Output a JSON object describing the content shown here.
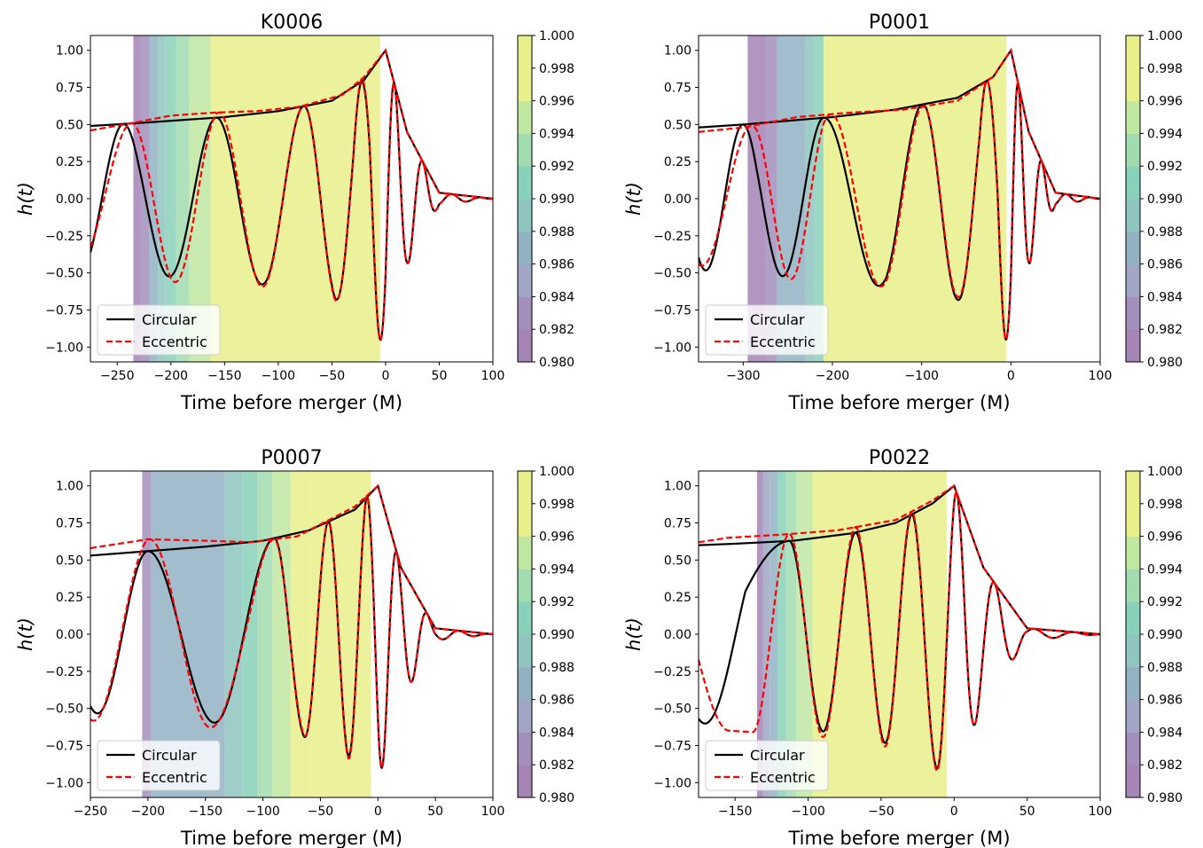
{
  "figure": {
    "xlabel_common": "Time before merger (M)",
    "ylabel_common": "h(t)"
  },
  "colors": {
    "circular": "#000000",
    "eccentric": "#ff0000",
    "colorbar_bins": [
      "#a584b6",
      "#a28fbc",
      "#a0a6c3",
      "#92b2c2",
      "#8ec6bf",
      "#88d1ba",
      "#a0dcb0",
      "#c0e8a1",
      "#e9f08a",
      "#e9f08a"
    ]
  },
  "chart_data": [
    {
      "type": "line",
      "title": "K0006",
      "xlabel": "Time before merger (M)",
      "ylabel": "h(t)",
      "xlim": [
        -275,
        100
      ],
      "ylim": [
        -1.1,
        1.1
      ],
      "xticks": [
        -250,
        -200,
        -150,
        -100,
        -50,
        0,
        50,
        100
      ],
      "yticks": [
        -1.0,
        -0.75,
        -0.5,
        -0.25,
        0.0,
        0.25,
        0.5,
        0.75,
        1.0
      ],
      "legend": {
        "placement": "lower-left",
        "entries": [
          "Circular",
          "Eccentric"
        ]
      },
      "colorbar": {
        "range": [
          0.98,
          1.0
        ],
        "ticks": [
          0.98,
          0.982,
          0.984,
          0.986,
          0.988,
          0.99,
          0.992,
          0.994,
          0.996,
          0.998,
          1.0
        ]
      },
      "shading_bands": [
        {
          "x0": -235,
          "x1": -228,
          "value": 0.9815
        },
        {
          "x0": -228,
          "x1": -220,
          "value": 0.9835
        },
        {
          "x0": -220,
          "x1": -212,
          "value": 0.9865
        },
        {
          "x0": -212,
          "x1": -205,
          "value": 0.9885
        },
        {
          "x0": -205,
          "x1": -195,
          "value": 0.991
        },
        {
          "x0": -195,
          "x1": -183,
          "value": 0.993
        },
        {
          "x0": -183,
          "x1": -163,
          "value": 0.995
        },
        {
          "x0": -163,
          "x1": -5,
          "value": 0.999
        }
      ],
      "series": [
        {
          "name": "Circular",
          "style": "solid",
          "amp": {
            "x": [
              -275,
              -230,
              -150,
              -100,
              -50,
              -20,
              0,
              20,
              50,
              100
            ],
            "y": [
              0.49,
              0.51,
              0.55,
              0.59,
              0.66,
              0.8,
              1.0,
              0.45,
              0.04,
              0.0
            ]
          },
          "phase": {
            "x": [
              -275,
              -230,
              -160,
              -110,
              -75,
              -50,
              -30,
              -15,
              0,
              10,
              25,
              40,
              60
            ],
            "y": [
              3.88,
              7.4,
              12.4,
              16.1,
              18.96,
              21.5,
              23.95,
              26.25,
              29.3,
              31.85,
              35.45,
              38.95,
              43.55
            ]
          }
        },
        {
          "name": "Eccentric",
          "style": "dashed",
          "amp": {
            "x": [
              -275,
              -236,
              -200,
              -160,
              -120,
              -80,
              -40,
              -20,
              0,
              20,
              50,
              100
            ],
            "y": [
              0.46,
              0.51,
              0.56,
              0.58,
              0.59,
              0.62,
              0.7,
              0.82,
              1.0,
              0.45,
              0.04,
              0.0
            ]
          },
          "phase": {
            "x": [
              -275,
              -236,
              -160,
              -110,
              -75,
              -50,
              -30,
              -15,
              0,
              10,
              25,
              40,
              60
            ],
            "y": [
              3.92,
              6.35,
              12.2,
              16.1,
              18.96,
              21.5,
              23.95,
              26.25,
              29.3,
              31.85,
              35.45,
              38.95,
              43.55
            ]
          }
        }
      ]
    },
    {
      "type": "line",
      "title": "P0001",
      "xlabel": "Time before merger (M)",
      "ylabel": "h(t)",
      "xlim": [
        -350,
        100
      ],
      "ylim": [
        -1.1,
        1.1
      ],
      "xticks": [
        -300,
        -200,
        -100,
        0,
        100
      ],
      "yticks": [
        -1.0,
        -0.75,
        -0.5,
        -0.25,
        0.0,
        0.25,
        0.5,
        0.75,
        1.0
      ],
      "legend": {
        "placement": "lower-left",
        "entries": [
          "Circular",
          "Eccentric"
        ]
      },
      "colorbar": {
        "range": [
          0.98,
          1.0
        ],
        "ticks": [
          0.98,
          0.982,
          0.984,
          0.986,
          0.988,
          0.99,
          0.992,
          0.994,
          0.996,
          0.998,
          1.0
        ]
      },
      "shading_bands": [
        {
          "x0": -295,
          "x1": -275,
          "value": 0.9815
        },
        {
          "x0": -275,
          "x1": -262,
          "value": 0.9835
        },
        {
          "x0": -262,
          "x1": -230,
          "value": 0.9865
        },
        {
          "x0": -230,
          "x1": -220,
          "value": 0.9885
        },
        {
          "x0": -220,
          "x1": -210,
          "value": 0.991
        },
        {
          "x0": -210,
          "x1": -130,
          "value": 0.997
        },
        {
          "x0": -130,
          "x1": -5,
          "value": 0.999
        }
      ],
      "series": [
        {
          "name": "Circular",
          "style": "solid",
          "amp": {
            "x": [
              -350,
              -300,
              -200,
              -130,
              -60,
              -20,
              0,
              20,
              50,
              100
            ],
            "y": [
              0.48,
              0.5,
              0.55,
              0.6,
              0.68,
              0.82,
              1.0,
              0.45,
              0.04,
              0.0
            ]
          },
          "phase": {
            "x": [
              -350,
              -285,
              -210,
              -140,
              -95,
              -60,
              -35,
              -15,
              0,
              10,
              25,
              40,
              60
            ],
            "y": [
              2.54,
              7.45,
              12.55,
              16.15,
              19.15,
              21.95,
              24.15,
              26.65,
              29.3,
              31.85,
              35.45,
              38.95,
              43.55
            ]
          }
        },
        {
          "name": "Eccentric",
          "style": "dashed",
          "amp": {
            "x": [
              -350,
              -300,
              -240,
              -180,
              -120,
              -60,
              -20,
              0,
              20,
              50,
              100
            ],
            "y": [
              0.45,
              0.48,
              0.55,
              0.58,
              0.6,
              0.66,
              0.82,
              1.0,
              0.45,
              0.04,
              0.0
            ]
          },
          "phase": {
            "x": [
              -350,
              -285,
              -210,
              -140,
              -95,
              -60,
              -35,
              -15,
              0,
              10,
              25,
              40,
              60
            ],
            "y": [
              2.95,
              6.65,
              12.1,
              16.05,
              19.1,
              21.95,
              24.15,
              26.65,
              29.3,
              31.85,
              35.45,
              38.95,
              43.55
            ]
          }
        }
      ]
    },
    {
      "type": "line",
      "title": "P0007",
      "xlabel": "Time before merger (M)",
      "ylabel": "h(t)",
      "xlim": [
        -250,
        100
      ],
      "ylim": [
        -1.1,
        1.1
      ],
      "xticks": [
        -250,
        -200,
        -150,
        -100,
        -50,
        0,
        50,
        100
      ],
      "yticks": [
        -1.0,
        -0.75,
        -0.5,
        -0.25,
        0.0,
        0.25,
        0.5,
        0.75,
        1.0
      ],
      "legend": {
        "placement": "lower-left",
        "entries": [
          "Circular",
          "Eccentric"
        ]
      },
      "colorbar": {
        "range": [
          0.98,
          1.0
        ],
        "ticks": [
          0.98,
          0.982,
          0.984,
          0.986,
          0.988,
          0.99,
          0.992,
          0.994,
          0.996,
          0.998,
          1.0
        ]
      },
      "shading_bands": [
        {
          "x0": -205,
          "x1": -197,
          "value": 0.9835
        },
        {
          "x0": -197,
          "x1": -133,
          "value": 0.9865
        },
        {
          "x0": -133,
          "x1": -118,
          "value": 0.9885
        },
        {
          "x0": -118,
          "x1": -105,
          "value": 0.9905
        },
        {
          "x0": -105,
          "x1": -92,
          "value": 0.9925
        },
        {
          "x0": -92,
          "x1": -76,
          "value": 0.9945
        },
        {
          "x0": -76,
          "x1": -58,
          "value": 0.9965
        },
        {
          "x0": -58,
          "x1": -6,
          "value": 0.999
        }
      ],
      "series": [
        {
          "name": "Circular",
          "style": "solid",
          "amp": {
            "x": [
              -250,
              -200,
              -150,
              -100,
              -60,
              -20,
              0,
              20,
              50,
              100
            ],
            "y": [
              0.53,
              0.56,
              0.59,
              0.63,
              0.7,
              0.84,
              1.0,
              0.45,
              0.04,
              0.0
            ]
          },
          "phase": {
            "x": [
              -250,
              -200,
              -142,
              -90,
              -65,
              -45,
              -28,
              -12,
              0,
              10,
              25,
              40,
              60
            ],
            "y": [
              2.72,
              6.3,
              9.45,
              12.6,
              15.5,
              18.55,
              21.5,
              24.6,
              27.3,
              29.85,
              33.45,
              36.95,
              41.55
            ]
          }
        },
        {
          "name": "Eccentric",
          "style": "dashed",
          "amp": {
            "x": [
              -250,
              -200,
              -150,
              -110,
              -70,
              -40,
              -20,
              0,
              20,
              50,
              100
            ],
            "y": [
              0.58,
              0.64,
              0.63,
              0.62,
              0.66,
              0.78,
              0.86,
              1.0,
              0.45,
              0.04,
              0.0
            ]
          },
          "phase": {
            "x": [
              -250,
              -198,
              -145,
              -110,
              -90,
              -65,
              -45,
              -28,
              -12,
              0,
              10,
              25,
              40,
              60
            ],
            "y": [
              3.0,
              6.3,
              9.45,
              11.3,
              12.6,
              15.5,
              18.55,
              21.5,
              24.6,
              27.3,
              29.85,
              33.45,
              36.95,
              41.55
            ]
          }
        }
      ]
    },
    {
      "type": "line",
      "title": "P0022",
      "xlabel": "Time before merger (M)",
      "ylabel": "h(t)",
      "xlim": [
        -175,
        100
      ],
      "ylim": [
        -1.1,
        1.1
      ],
      "xticks": [
        -150,
        -100,
        -50,
        0,
        50,
        100
      ],
      "yticks": [
        -1.0,
        -0.75,
        -0.5,
        -0.25,
        0.0,
        0.25,
        0.5,
        0.75,
        1.0
      ],
      "legend": {
        "placement": "lower-left",
        "entries": [
          "Circular",
          "Eccentric"
        ]
      },
      "colorbar": {
        "range": [
          0.98,
          1.0
        ],
        "ticks": [
          0.98,
          0.982,
          0.984,
          0.986,
          0.988,
          0.99,
          0.992,
          0.994,
          0.996,
          0.998,
          1.0
        ]
      },
      "shading_bands": [
        {
          "x0": -135,
          "x1": -131,
          "value": 0.9815
        },
        {
          "x0": -131,
          "x1": -126,
          "value": 0.9845
        },
        {
          "x0": -126,
          "x1": -121,
          "value": 0.9875
        },
        {
          "x0": -121,
          "x1": -115,
          "value": 0.9905
        },
        {
          "x0": -115,
          "x1": -108,
          "value": 0.9925
        },
        {
          "x0": -108,
          "x1": -97,
          "value": 0.995
        },
        {
          "x0": -97,
          "x1": -5,
          "value": 0.999
        }
      ],
      "series": [
        {
          "name": "Circular",
          "style": "solid",
          "amp": {
            "x": [
              -175,
              -150,
              -110,
              -70,
              -40,
              -15,
              0,
              20,
              50,
              100
            ],
            "y": [
              0.6,
              0.61,
              0.63,
              0.68,
              0.75,
              0.88,
              1.0,
              0.45,
              0.04,
              0.0
            ]
          },
          "phase": {
            "x": [
              -175,
              -143,
              -113,
              -90,
              -68,
              -48,
              -30,
              -12,
              0,
              10,
              25,
              40,
              60
            ],
            "y": [
              2.82,
              5.2,
              6.28,
              9.4,
              12.5,
              15.6,
              18.7,
              21.95,
              24.65,
              27.2,
              30.8,
              34.3,
              38.9
            ]
          }
        },
        {
          "name": "Eccentric",
          "style": "dashed",
          "amp": {
            "x": [
              -175,
              -155,
              -120,
              -80,
              -40,
              -15,
              0,
              20,
              50,
              100
            ],
            "y": [
              0.62,
              0.65,
              0.67,
              0.7,
              0.77,
              0.9,
              1.0,
              0.45,
              0.04,
              0.0
            ]
          },
          "phase": {
            "x": [
              -175,
              -155,
              -138,
              -113,
              -90,
              -68,
              -48,
              -30,
              -12,
              0,
              10,
              25,
              40,
              60
            ],
            "y": [
              1.85,
              3.1,
              3.14,
              6.28,
              9.4,
              12.5,
              15.6,
              18.7,
              21.95,
              24.65,
              27.2,
              30.8,
              34.3,
              38.9
            ]
          }
        }
      ]
    }
  ]
}
